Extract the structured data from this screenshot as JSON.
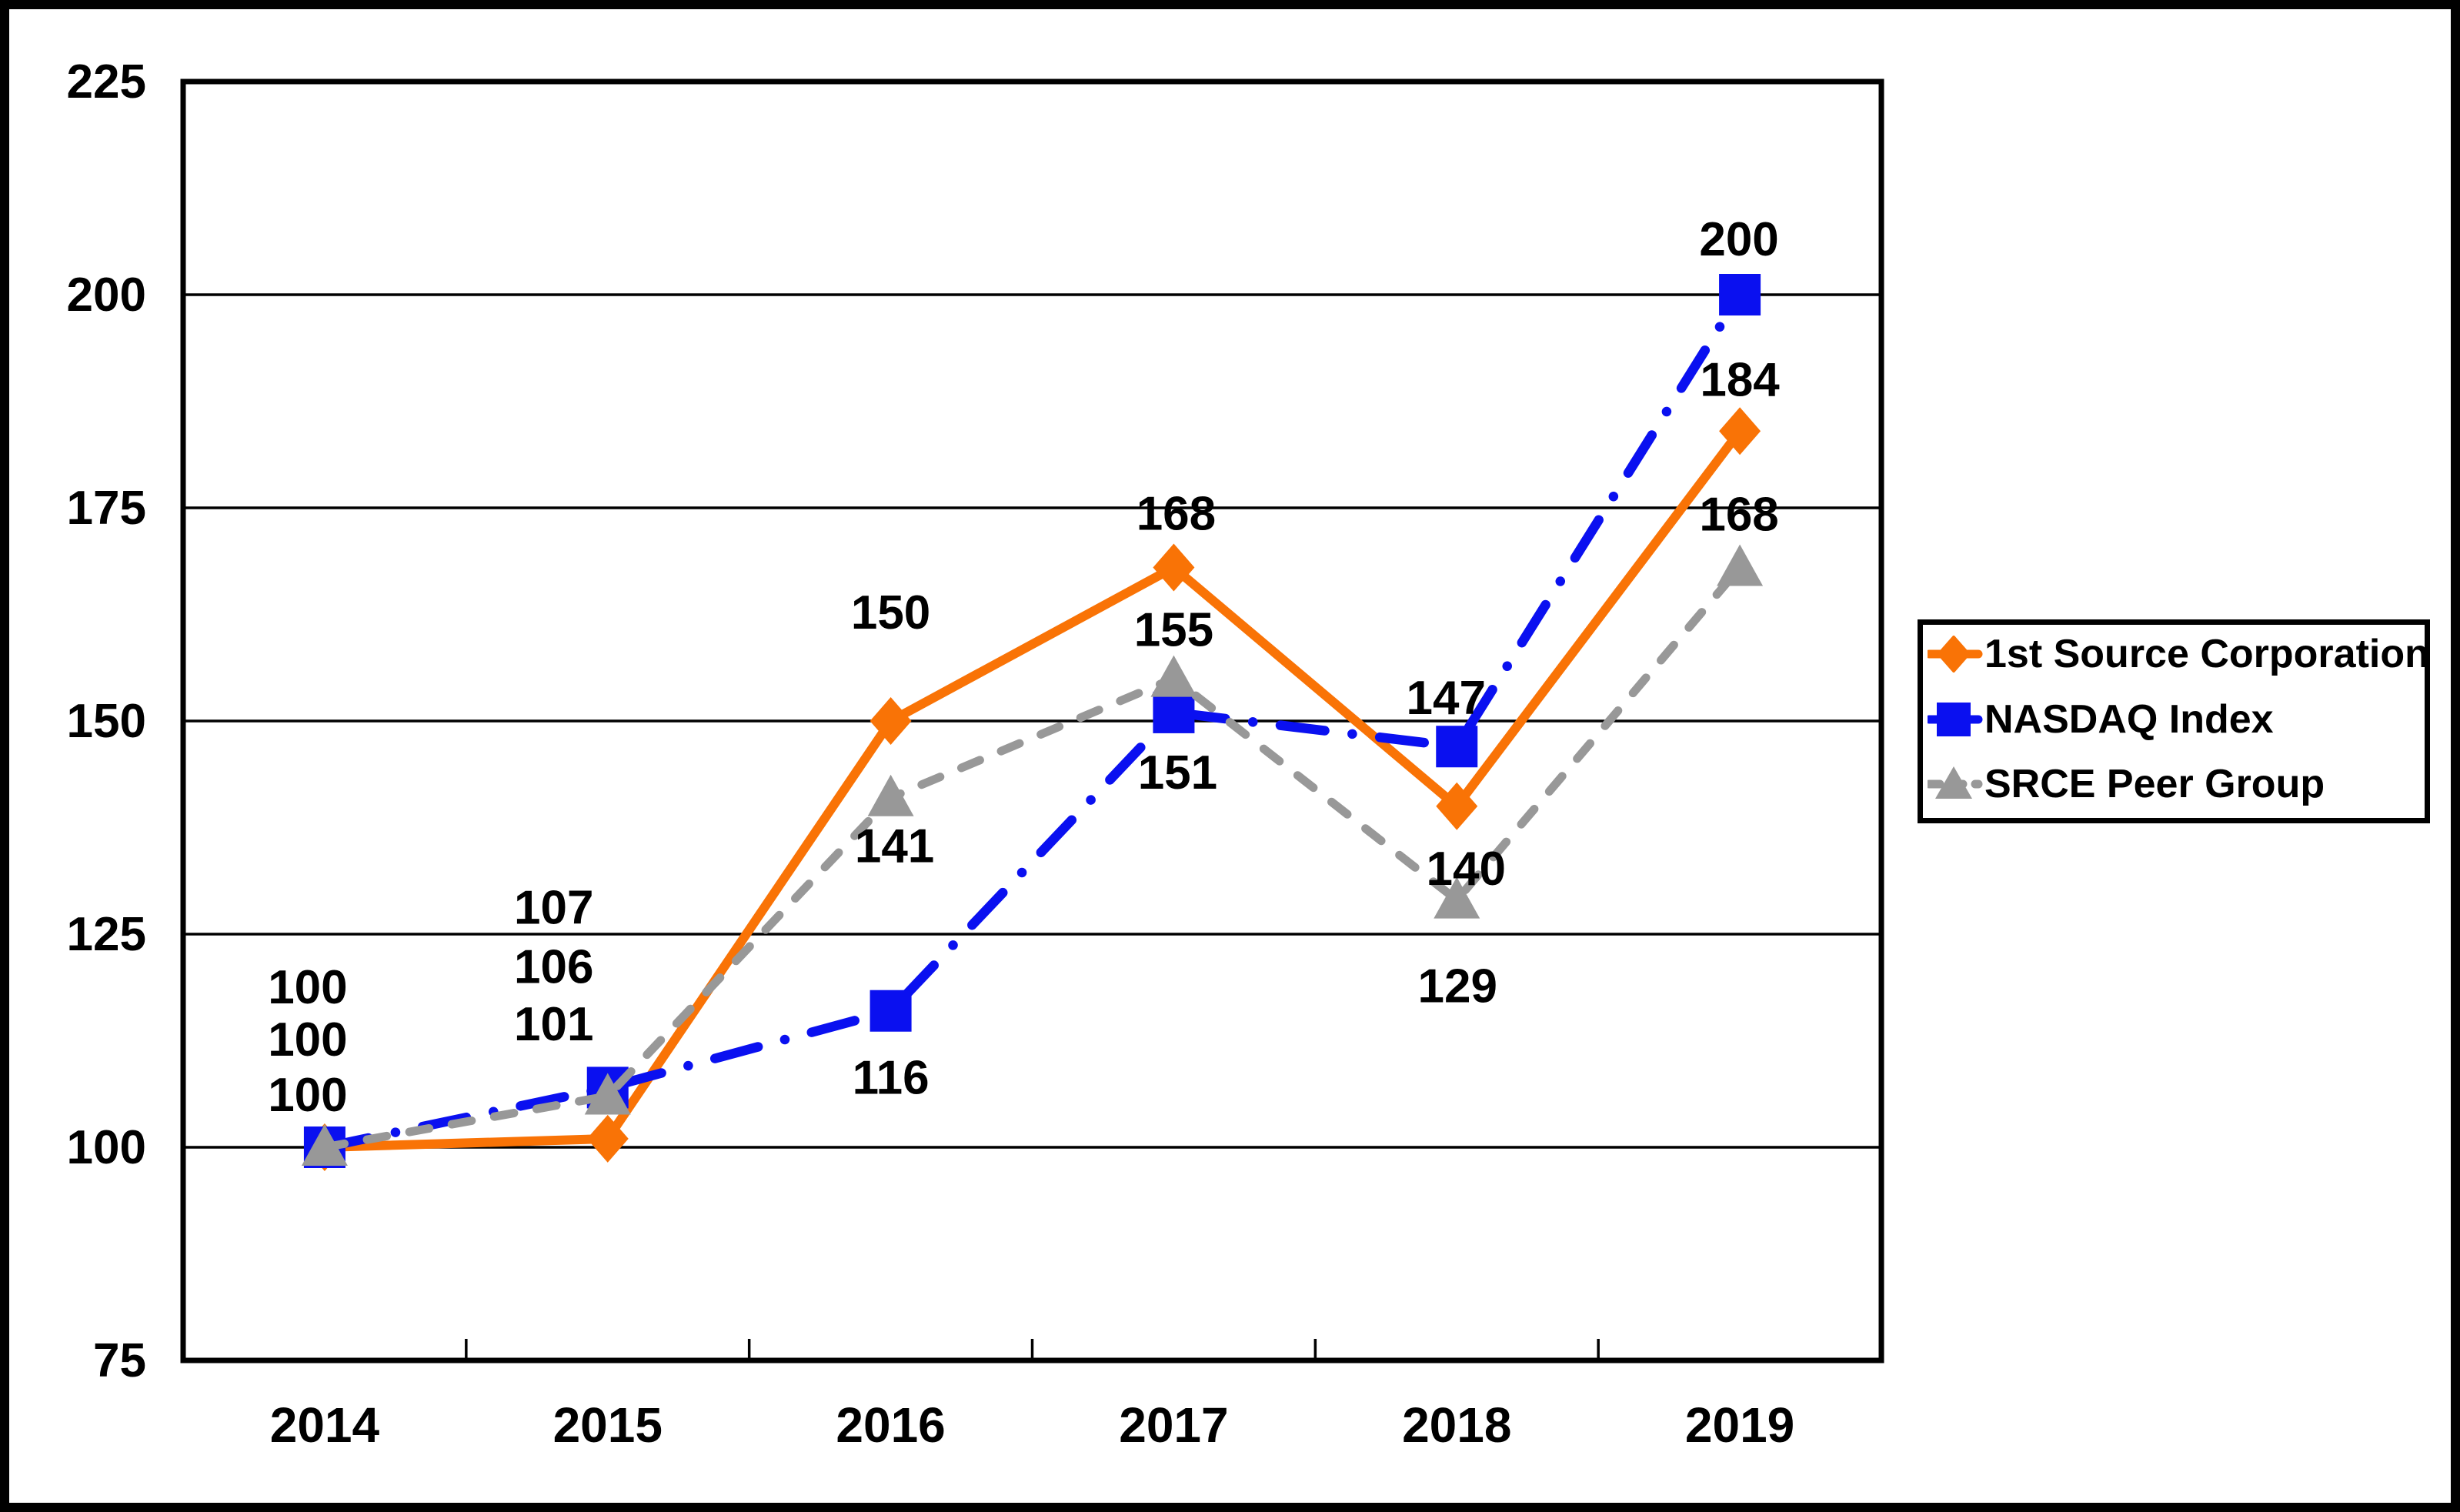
{
  "frame": {
    "border_color": "#000000",
    "background": "#FFFFFF"
  },
  "chart_data": {
    "type": "line",
    "title": "",
    "categories": [
      "2014",
      "2015",
      "2016",
      "2017",
      "2018",
      "2019"
    ],
    "series": [
      {
        "name": "1st Source Corporation",
        "color": "#F97306",
        "marker": "diamond",
        "line_style": "solid",
        "values": [
          100,
          101,
          150,
          168,
          140,
          184
        ],
        "labels": [
          "100",
          "101",
          "150",
          "168",
          "140",
          "184"
        ]
      },
      {
        "name": "NASDAQ Index",
        "color": "#0A10F0",
        "marker": "square",
        "line_style": "dash-dot",
        "values": [
          100,
          107,
          116,
          151,
          147,
          200
        ],
        "labels": [
          "100",
          "107",
          "116",
          "151",
          "147",
          "200"
        ]
      },
      {
        "name": "SRCE Peer Group",
        "color": "#989898",
        "marker": "triangle",
        "line_style": "dashed",
        "values": [
          100,
          106,
          141,
          155,
          129,
          168
        ],
        "labels": [
          "100",
          "106",
          "141",
          "155",
          "129",
          "168"
        ]
      }
    ],
    "xlabel": "",
    "ylabel": "",
    "ylim": [
      75,
      225
    ],
    "ytick_step": 25,
    "ytick_labels": [
      "225",
      "200",
      "175",
      "150",
      "125",
      "100",
      "75"
    ],
    "grid": true,
    "gridline_color": "#000000",
    "axis_color": "#000000",
    "data_label_color": "#000000",
    "legend_position": "right"
  }
}
